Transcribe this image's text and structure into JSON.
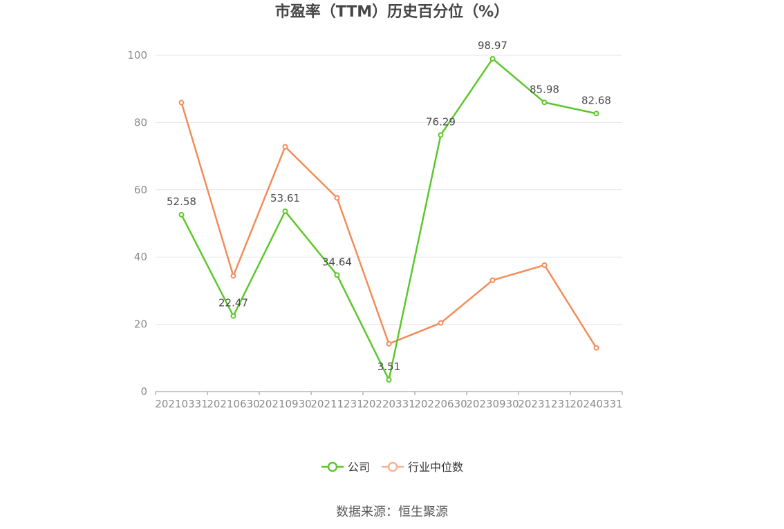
{
  "chart_data": {
    "type": "line",
    "title": "市盈率（TTM）历史百分位（%）",
    "categories": [
      "20210331",
      "20210630",
      "20210930",
      "20211231",
      "20220331",
      "20220630",
      "20230930",
      "20231231",
      "20240331"
    ],
    "series": [
      {
        "name": "公司",
        "color": "#5cc72b",
        "values": [
          52.58,
          22.47,
          53.61,
          34.64,
          3.51,
          76.29,
          98.97,
          85.98,
          82.68
        ],
        "labels": [
          "52.58",
          "22.47",
          "53.61",
          "34.64",
          "3.51",
          "76.29",
          "98.97",
          "85.98",
          "82.68"
        ]
      },
      {
        "name": "行业中位数",
        "color": "#f28c5a",
        "values": [
          85.9,
          34.4,
          72.8,
          57.6,
          14.2,
          20.4,
          33.1,
          37.6,
          13.0
        ]
      }
    ],
    "y_ticks": [
      "0",
      "20",
      "40",
      "60",
      "80",
      "100"
    ],
    "ylim": [
      0,
      100
    ],
    "grid": true,
    "legend_position": "bottom-center",
    "source": "数据来源：恒生聚源"
  }
}
